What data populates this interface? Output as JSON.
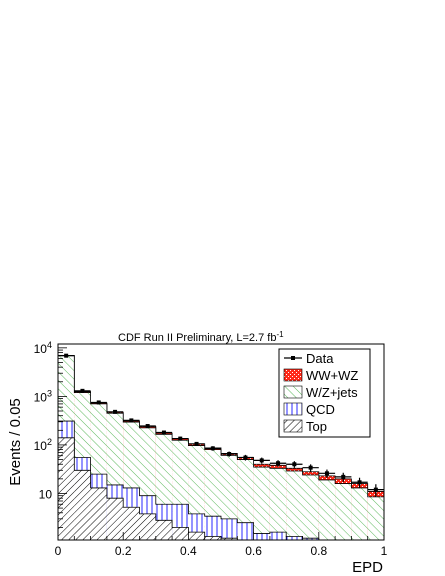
{
  "chart_data": {
    "type": "histogram-stack",
    "title": "CDF Run II Preliminary, L=2.7 fb",
    "title_superscript": "-1",
    "xlabel": "EPD",
    "ylabel": "Events / 0.05",
    "xlim": [
      0,
      1
    ],
    "ylim": [
      1.1,
      12000
    ],
    "y_scale": "log",
    "x_ticks": [
      {
        "value": 0,
        "label": "0"
      },
      {
        "value": 0.2,
        "label": "0.2"
      },
      {
        "value": 0.4,
        "label": "0.4"
      },
      {
        "value": 0.6,
        "label": "0.6"
      },
      {
        "value": 0.8,
        "label": "0.8"
      },
      {
        "value": 1.0,
        "label": "1"
      }
    ],
    "y_ticks": [
      {
        "value": 10,
        "base": "10",
        "exp": ""
      },
      {
        "value": 100,
        "base": "10",
        "exp": "2"
      },
      {
        "value": 1000,
        "base": "10",
        "exp": "3"
      },
      {
        "value": 10000,
        "base": "10",
        "exp": "4"
      }
    ],
    "bin_edges": [
      0,
      0.05,
      0.1,
      0.15,
      0.2,
      0.25,
      0.3,
      0.35,
      0.4,
      0.45,
      0.5,
      0.55,
      0.6,
      0.65,
      0.7,
      0.75,
      0.8,
      0.85,
      0.9,
      0.95,
      1.0
    ],
    "legend_position": "top-right",
    "series": [
      {
        "name": "Data",
        "style": "points",
        "values": [
          6900,
          1300,
          750,
          480,
          320,
          245,
          180,
          135,
          105,
          85,
          65,
          55,
          48,
          42,
          40,
          34,
          26,
          22,
          17,
          12
        ],
        "errors": [
          83,
          36,
          27,
          22,
          18,
          16,
          13,
          12,
          10,
          9,
          8,
          7.4,
          6.9,
          6.5,
          6.3,
          5.8,
          5.1,
          4.7,
          4.1,
          3.5
        ]
      },
      {
        "name": "WW+WZ",
        "style": "stack",
        "color": "#ff2a1a",
        "totals": [
          7000,
          1250,
          730,
          470,
          310,
          240,
          175,
          135,
          105,
          87,
          67,
          55,
          40,
          38,
          33,
          28,
          23,
          20,
          16,
          11
        ],
        "values": [
          7000,
          1250,
          730,
          470,
          310,
          240,
          175,
          135,
          105,
          87,
          67,
          55,
          40,
          38,
          33,
          28,
          23,
          20,
          16,
          11
        ]
      },
      {
        "name": "W/Z+jets",
        "style": "stack",
        "color": "#5cb85c",
        "totals": [
          6900,
          1200,
          700,
          450,
          295,
          225,
          165,
          125,
          97,
          80,
          61,
          50,
          35,
          33,
          29,
          24,
          19,
          16,
          13,
          8.5
        ],
        "values": [
          6900,
          1200,
          700,
          450,
          295,
          225,
          165,
          125,
          97,
          80,
          61,
          50,
          35,
          33,
          29,
          24,
          19,
          16,
          13,
          8.5
        ]
      },
      {
        "name": "QCD",
        "style": "stack",
        "color": "#2a2aff",
        "totals": [
          310,
          55,
          25,
          15,
          13,
          9,
          6,
          6,
          3.8,
          3.4,
          3,
          2.5,
          1.5,
          1.6,
          1.3,
          1.2,
          1.1,
          1.1,
          1.1,
          1.1
        ],
        "values": [
          310,
          55,
          25,
          15,
          13,
          9,
          6,
          6,
          3.8,
          3.4,
          3,
          2.5,
          1.5,
          1.6,
          1.3,
          1.2,
          1.1,
          1.1,
          1.1,
          1.1
        ]
      },
      {
        "name": "Top",
        "style": "stack",
        "color": "#000000",
        "totals": [
          140,
          30,
          13,
          8,
          5.2,
          3.8,
          2.8,
          2,
          1.6,
          1.3,
          1.2,
          1.1,
          1.1,
          1.1,
          1.1,
          1.1,
          1.1,
          1.1,
          1.1,
          1.1
        ],
        "values": [
          140,
          30,
          13,
          8,
          5.2,
          3.8,
          2.8,
          2,
          1.6,
          1.3,
          1.2,
          1.1,
          1.1,
          1.1,
          1.1,
          1.1,
          1.1,
          1.1,
          1.1,
          1.1
        ]
      }
    ]
  }
}
